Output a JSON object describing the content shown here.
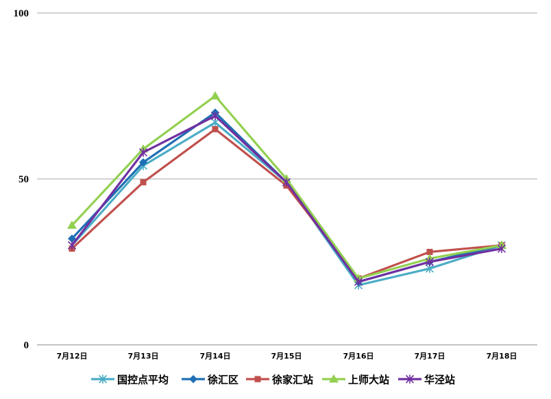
{
  "chart_data": {
    "type": "line",
    "title": "",
    "xlabel": "",
    "ylabel": "",
    "ylim": [
      0,
      100
    ],
    "yticks": [
      "0",
      "50",
      "100"
    ],
    "grid": true,
    "legend_position": "bottom",
    "categories": [
      "7月12日",
      "7月13日",
      "7月14日",
      "7月15日",
      "7月16日",
      "7月17日",
      "7月18日"
    ],
    "series": [
      {
        "name": "国控点平均",
        "color": "#4bacc6",
        "marker": "asterisk",
        "values": [
          30,
          54,
          67,
          49,
          18,
          23,
          30
        ]
      },
      {
        "name": "徐汇区",
        "color": "#1f6fb4",
        "marker": "diamond",
        "values": [
          32,
          55,
          70,
          49,
          19,
          25,
          30
        ]
      },
      {
        "name": "徐家汇站",
        "color": "#c0504d",
        "marker": "square",
        "values": [
          29,
          49,
          65,
          48,
          20,
          28,
          30
        ]
      },
      {
        "name": "上师大站",
        "color": "#92d050",
        "marker": "triangle",
        "values": [
          36,
          59,
          75,
          50,
          20,
          26,
          30
        ]
      },
      {
        "name": "华泾站",
        "color": "#7030a0",
        "marker": "asterisk",
        "values": [
          30,
          58,
          69,
          49,
          19,
          25,
          29
        ]
      }
    ]
  }
}
